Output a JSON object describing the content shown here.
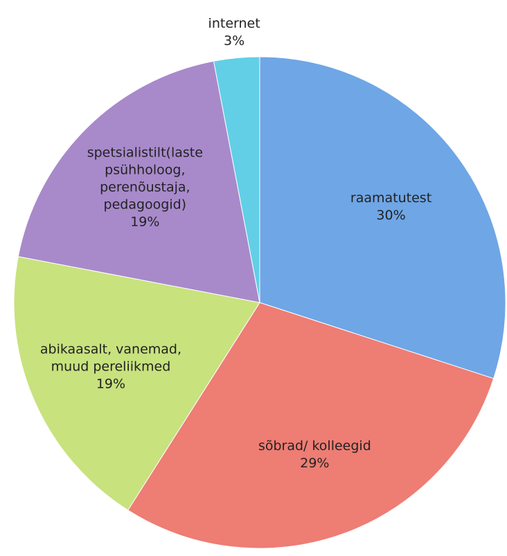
{
  "chart_data": {
    "type": "pie",
    "categories": [
      "raamatutest",
      "sõbrad/ kolleegid",
      "abikaasalt, vanemad, muud pereliikmed",
      "spetsialistilt(laste psühholoog, perenõustaja, pedagoogid)",
      "internet"
    ],
    "values": [
      30,
      29,
      19,
      19,
      3
    ],
    "value_labels": [
      "30%",
      "29%",
      "19%",
      "19%",
      "3%"
    ],
    "colors": [
      "#6fa6e6",
      "#ee7d74",
      "#c8e27e",
      "#a88acb",
      "#62cfe6"
    ]
  }
}
